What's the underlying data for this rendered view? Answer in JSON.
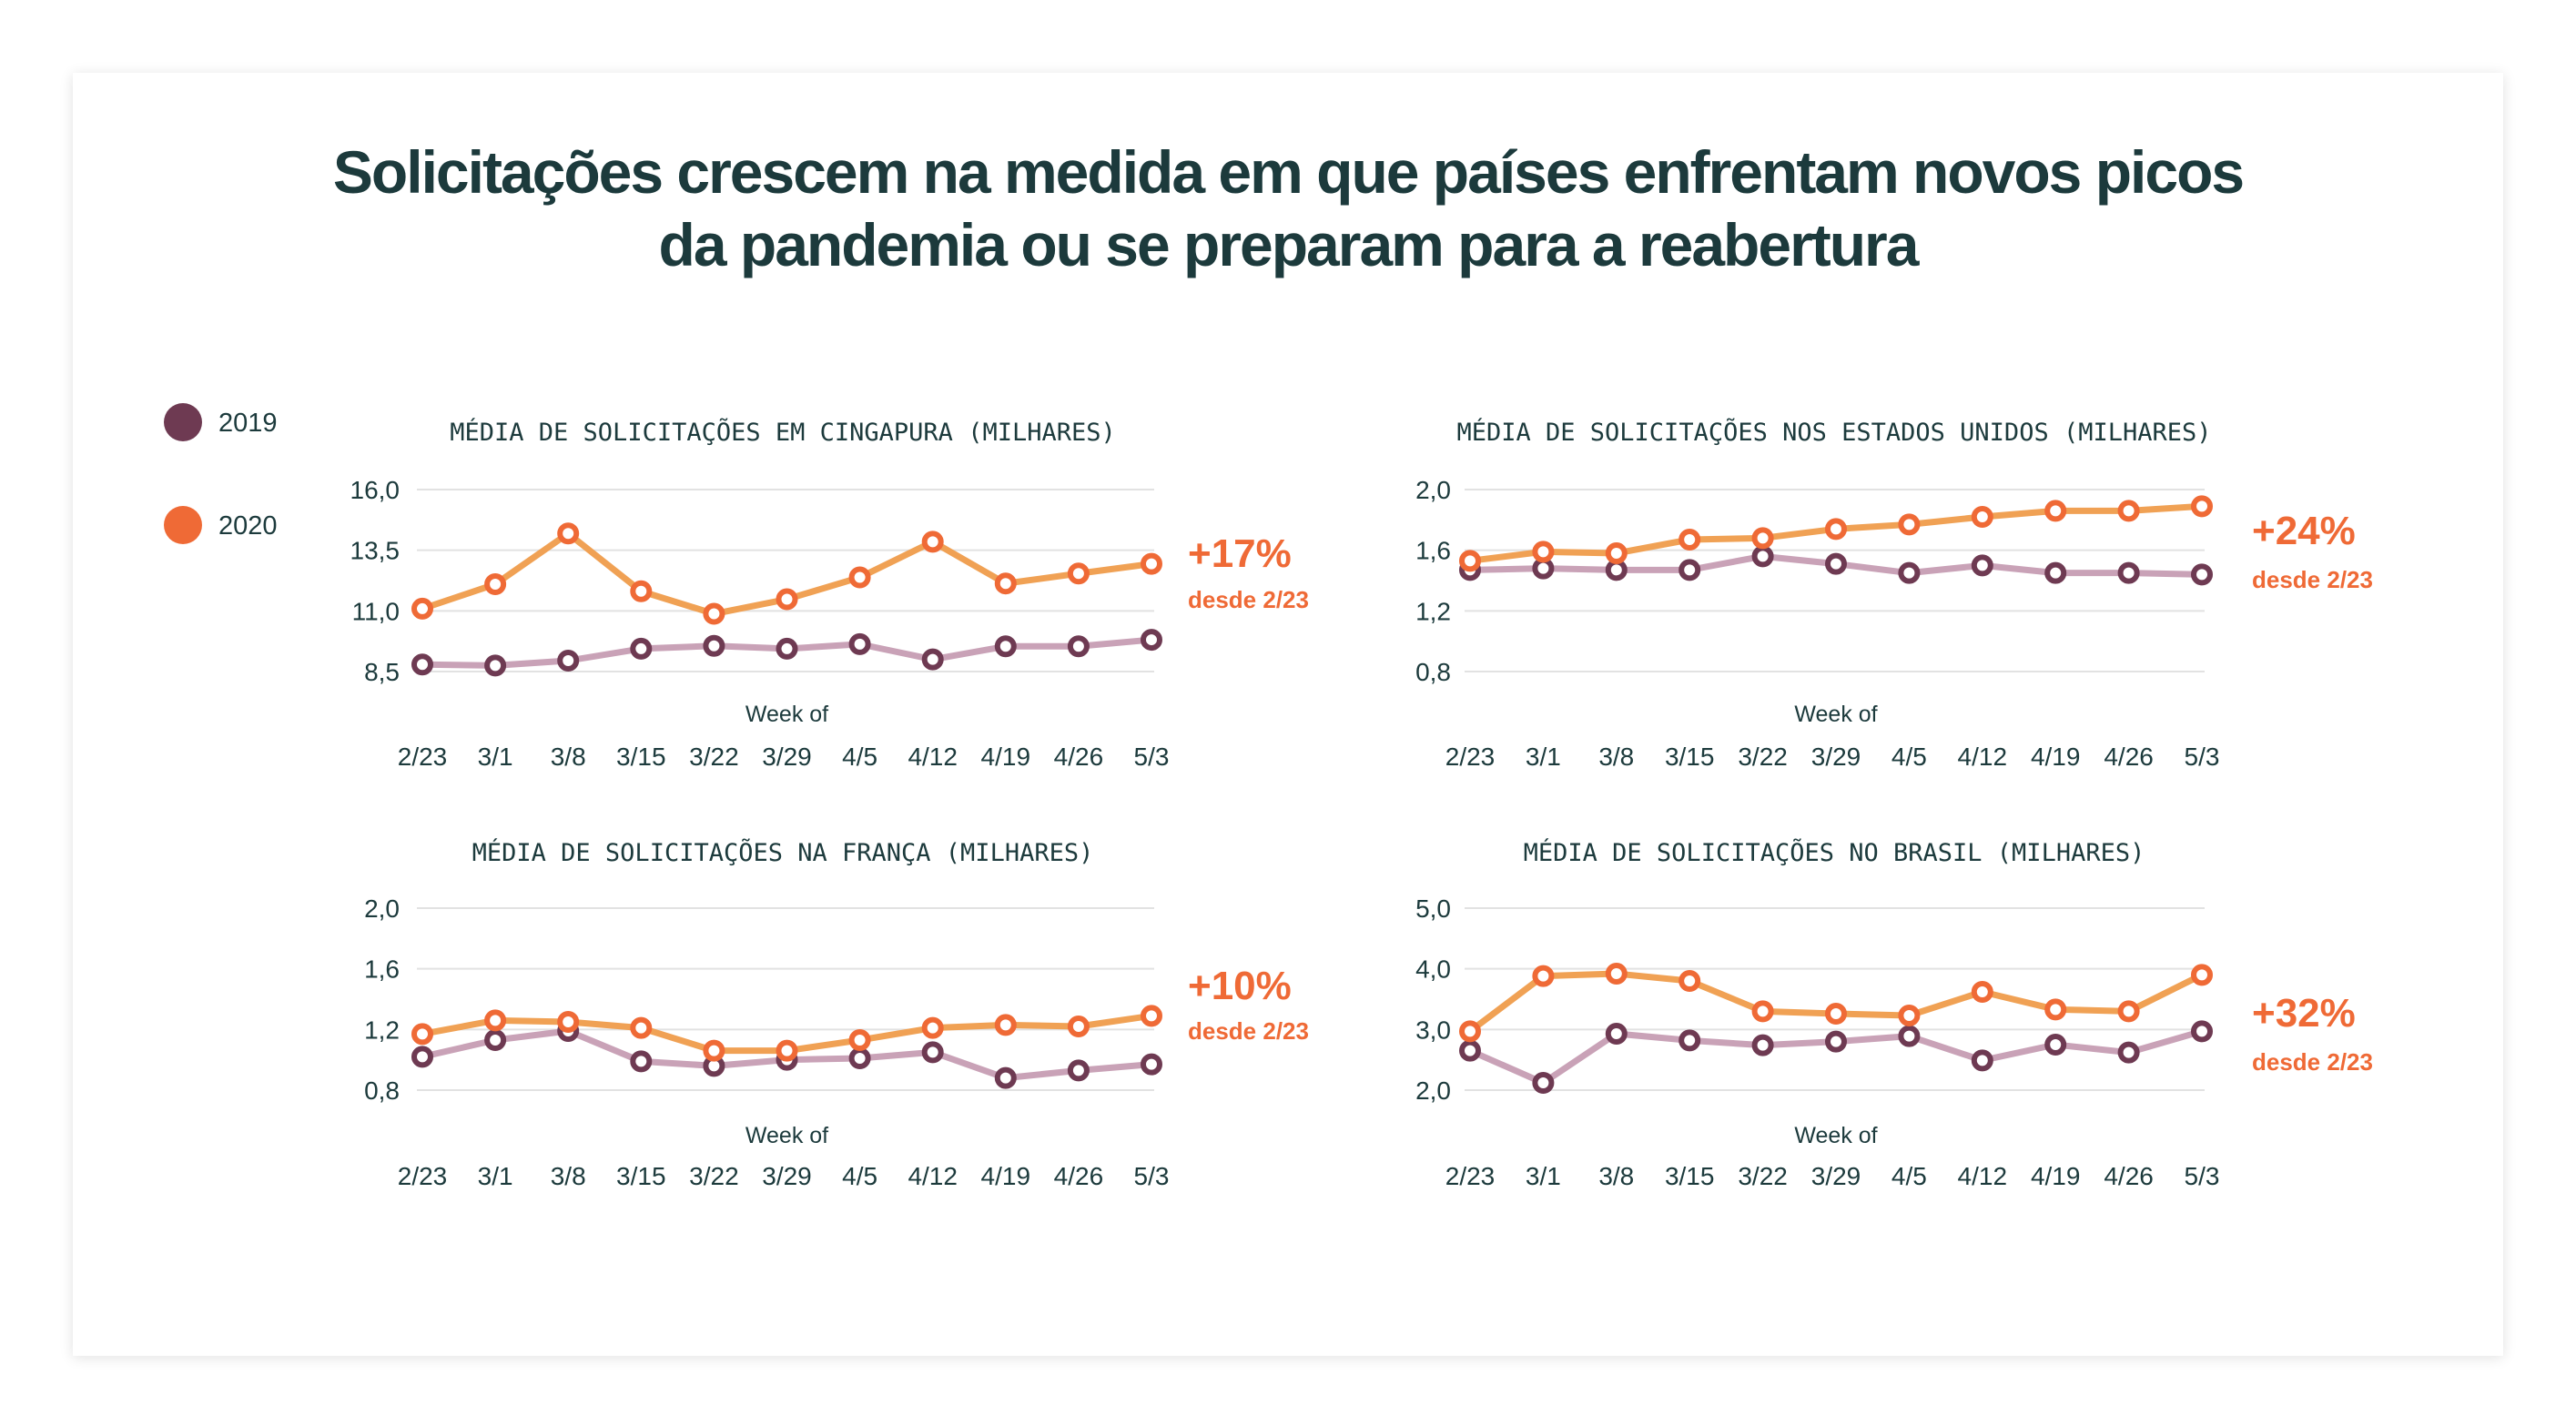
{
  "title_lines": [
    "Solicitações crescem na medida em que países enfrentam novos picos",
    "da pandemia ou se preparam para a reabertura"
  ],
  "legend": [
    {
      "label": "2019",
      "color": "#6e3a52"
    },
    {
      "label": "2020",
      "color": "#ef6a36"
    }
  ],
  "colors": {
    "line_2019": "#c9a2b7",
    "marker_2019": "#6e3a52",
    "line_2020": "#f0a154",
    "marker_2020": "#ef6a36",
    "grid": "#e2e2e2"
  },
  "chart_data": [
    {
      "type": "line",
      "title": "MÉDIA DE SOLICITAÇÕES EM CINGAPURA (MILHARES)",
      "xlabel": "Week of",
      "ylabel": "",
      "categories": [
        "2/23",
        "3/1",
        "3/8",
        "3/15",
        "3/22",
        "3/29",
        "4/5",
        "4/12",
        "4/19",
        "4/26",
        "5/3"
      ],
      "yticks": [
        "16,0",
        "13,5",
        "11,0",
        "8,5"
      ],
      "ytick_values": [
        16,
        13.5,
        11,
        8.5
      ],
      "ylim": [
        8.5,
        16
      ],
      "series": [
        {
          "name": "2019",
          "values": [
            8.79,
            8.75,
            8.95,
            9.44,
            9.56,
            9.44,
            9.63,
            9.0,
            9.54,
            9.54,
            9.81
          ]
        },
        {
          "name": "2020",
          "values": [
            11.09,
            12.1,
            14.19,
            11.81,
            10.88,
            11.48,
            12.38,
            13.85,
            12.13,
            12.54,
            12.94
          ]
        }
      ],
      "annotation": {
        "pct": "+17%",
        "since": "desde 2/23"
      }
    },
    {
      "type": "line",
      "title": "MÉDIA DE SOLICITAÇÕES NOS ESTADOS UNIDOS (MILHARES)",
      "xlabel": "Week of",
      "ylabel": "",
      "categories": [
        "2/23",
        "3/1",
        "3/8",
        "3/15",
        "3/22",
        "3/29",
        "4/5",
        "4/12",
        "4/19",
        "4/26",
        "5/3"
      ],
      "yticks": [
        "2,0",
        "1,6",
        "1,2",
        "0,8"
      ],
      "ytick_values": [
        2.0,
        1.6,
        1.2,
        0.8
      ],
      "ylim": [
        0.8,
        2.0
      ],
      "series": [
        {
          "name": "2019",
          "values": [
            1.47,
            1.48,
            1.47,
            1.47,
            1.56,
            1.51,
            1.45,
            1.5,
            1.45,
            1.45,
            1.44
          ]
        },
        {
          "name": "2020",
          "values": [
            1.53,
            1.59,
            1.58,
            1.67,
            1.68,
            1.74,
            1.77,
            1.82,
            1.86,
            1.86,
            1.89
          ]
        }
      ],
      "annotation": {
        "pct": "+24%",
        "since": "desde 2/23"
      }
    },
    {
      "type": "line",
      "title": "MÉDIA DE SOLICITAÇÕES NA FRANÇA (MILHARES)",
      "xlabel": "Week of",
      "ylabel": "",
      "categories": [
        "2/23",
        "3/1",
        "3/8",
        "3/15",
        "3/22",
        "3/29",
        "4/5",
        "4/12",
        "4/19",
        "4/26",
        "5/3"
      ],
      "yticks": [
        "2,0",
        "1,6",
        "1,2",
        "0,8"
      ],
      "ytick_values": [
        2.0,
        1.6,
        1.2,
        0.8
      ],
      "ylim": [
        0.8,
        2.0
      ],
      "series": [
        {
          "name": "2019",
          "values": [
            1.02,
            1.13,
            1.19,
            0.99,
            0.96,
            1.0,
            1.01,
            1.05,
            0.88,
            0.93,
            0.97
          ]
        },
        {
          "name": "2020",
          "values": [
            1.17,
            1.26,
            1.25,
            1.21,
            1.06,
            1.06,
            1.13,
            1.21,
            1.23,
            1.22,
            1.29
          ]
        }
      ],
      "annotation": {
        "pct": "+10%",
        "since": "desde 2/23"
      }
    },
    {
      "type": "line",
      "title": "MÉDIA DE SOLICITAÇÕES NO BRASIL (MILHARES)",
      "xlabel": "Week of",
      "ylabel": "",
      "categories": [
        "2/23",
        "3/1",
        "3/8",
        "3/15",
        "3/22",
        "3/29",
        "4/5",
        "4/12",
        "4/19",
        "4/26",
        "5/3"
      ],
      "yticks": [
        "5,0",
        "4,0",
        "3,0",
        "2,0"
      ],
      "ytick_values": [
        5,
        4,
        3,
        2
      ],
      "ylim": [
        2,
        5
      ],
      "series": [
        {
          "name": "2019",
          "values": [
            2.65,
            2.12,
            2.93,
            2.82,
            2.74,
            2.8,
            2.89,
            2.49,
            2.75,
            2.62,
            2.97
          ]
        },
        {
          "name": "2020",
          "values": [
            2.97,
            3.88,
            3.92,
            3.8,
            3.3,
            3.26,
            3.23,
            3.62,
            3.33,
            3.3,
            3.9
          ]
        }
      ],
      "annotation": {
        "pct": "+32%",
        "since": "desde 2/23"
      }
    }
  ]
}
